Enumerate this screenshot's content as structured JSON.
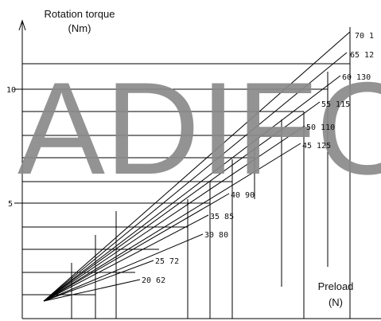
{
  "axis": {
    "y_title": [
      "Rotation torque",
      "(Nm)"
    ],
    "x_title": [
      "Preload",
      "(N)"
    ],
    "y_ticks": [
      "5",
      "10"
    ]
  },
  "curve_labels": [
    "70 1",
    "65 12",
    "60 130",
    "55 115",
    "50 110",
    "45 125",
    "40 90",
    "35 85",
    "30 80",
    "25 72",
    "20 62"
  ],
  "watermark": "ADIFO"
}
